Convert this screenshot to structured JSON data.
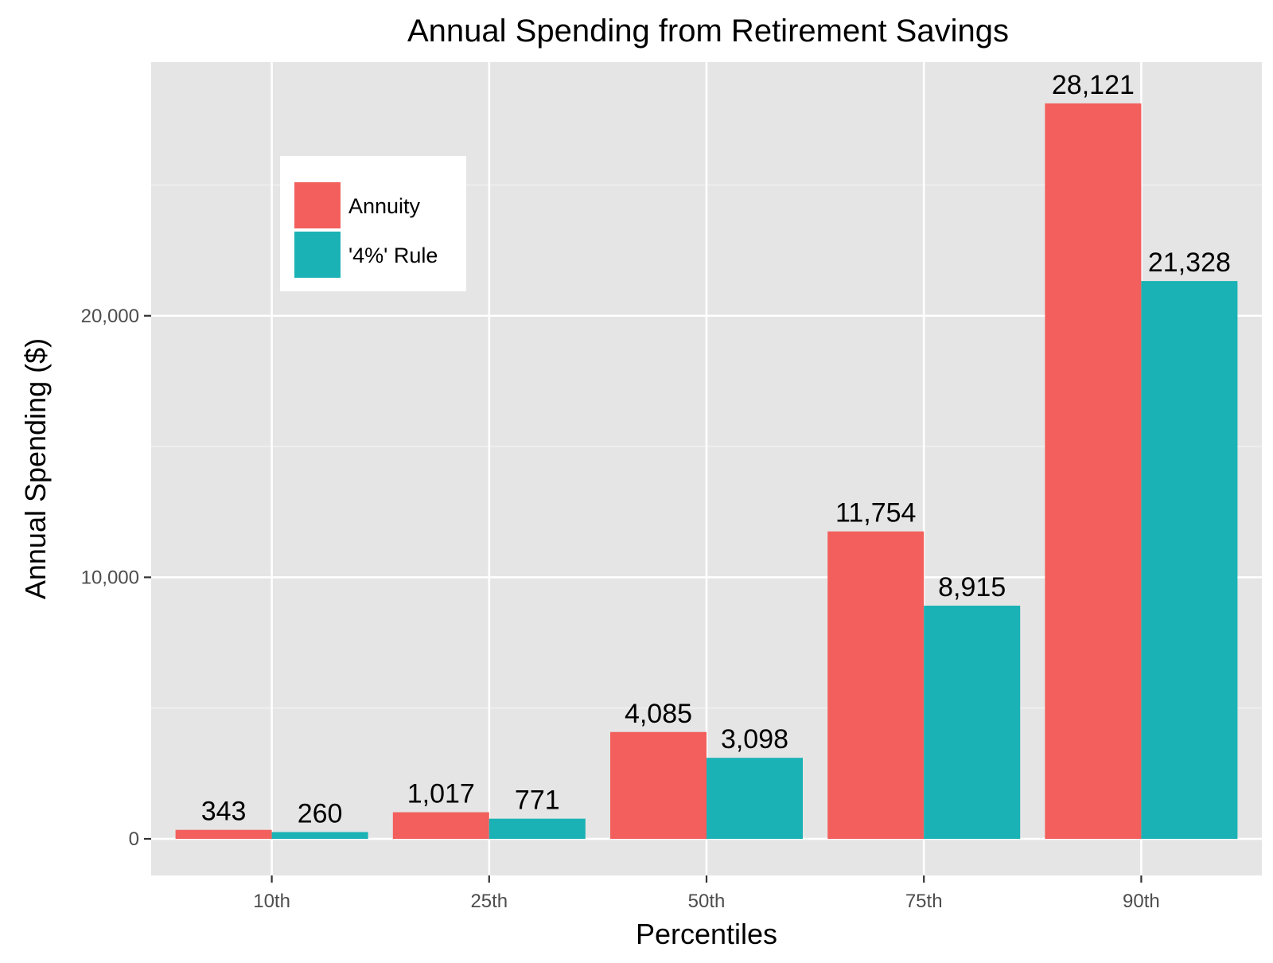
{
  "chart_data": {
    "type": "bar",
    "title": "Annual Spending from Retirement Savings",
    "xlabel": "Percentiles",
    "ylabel": "Annual Spending ($)",
    "categories": [
      "10th",
      "25th",
      "50th",
      "75th",
      "90th"
    ],
    "series": [
      {
        "name": "Annuity",
        "color": "#F25F5C",
        "values": [
          343,
          1017,
          4085,
          11754,
          28121
        ],
        "labels": [
          "343",
          "1,017",
          "4,085",
          "11,754",
          "28,121"
        ]
      },
      {
        "name": "'4%' Rule",
        "color": "#1AB2B5",
        "values": [
          260,
          771,
          3098,
          8915,
          21328
        ],
        "labels": [
          "260",
          "771",
          "3,098",
          "8,915",
          "21,328"
        ]
      }
    ],
    "ylim": [
      -1400,
      29700
    ],
    "yticks": [
      0,
      10000,
      20000
    ],
    "ytick_labels": [
      "0",
      "10,000",
      "20,000"
    ],
    "grid": true,
    "legend_position": "top-left",
    "panel_background": "#E5E5E5"
  }
}
